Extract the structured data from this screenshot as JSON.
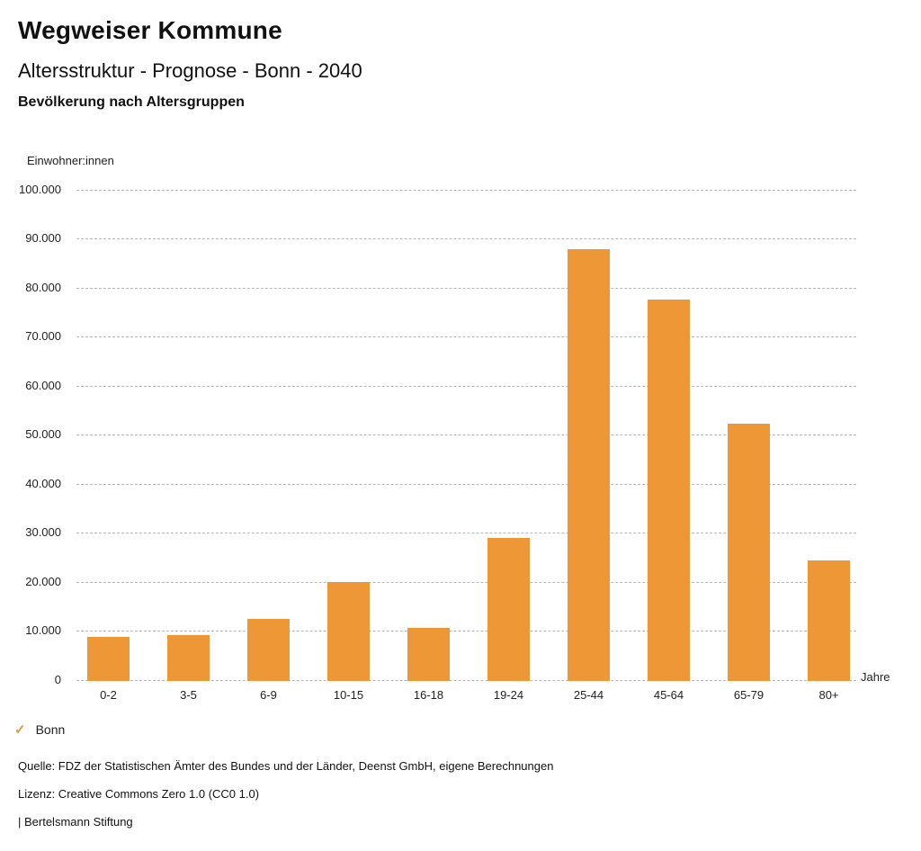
{
  "header": {
    "title": "Wegweiser Kommune",
    "subtitle": "Altersstruktur - Prognose - Bonn - 2040",
    "chart_heading": "Bevölkerung nach Altersgruppen"
  },
  "legend": {
    "check_icon": "✓",
    "label": "Bonn"
  },
  "footer": {
    "source": "Quelle: FDZ der Statistischen Ämter des Bundes und der Länder, Deenst GmbH, eigene Berechnungen",
    "license": "Lizenz: Creative Commons Zero 1.0 (CC0 1.0)",
    "publisher": "| Bertelsmann Stiftung"
  },
  "colors": {
    "bar": "#ED9737",
    "accent": "#ED9737",
    "gridline": "#b5b5b5",
    "text": "#111111"
  },
  "chart_data": {
    "type": "bar",
    "title": "Bevölkerung nach Altersgruppen",
    "categories": [
      "0-2",
      "3-5",
      "6-9",
      "10-15",
      "16-18",
      "19-24",
      "25-44",
      "45-64",
      "65-79",
      "80+"
    ],
    "series": [
      {
        "name": "Bonn",
        "values": [
          8800,
          9000,
          12400,
          19900,
          10500,
          28900,
          87900,
          77600,
          52300,
          24300
        ]
      }
    ],
    "xlabel": "Jahre",
    "ylabel": "Einwohner:innen",
    "ylim": [
      0,
      100000
    ],
    "ytick_step": 10000,
    "ytick_labels": [
      "0",
      "10.000",
      "20.000",
      "30.000",
      "40.000",
      "50.000",
      "60.000",
      "70.000",
      "80.000",
      "90.000",
      "100.000"
    ],
    "grid": "horizontal-dashed",
    "legend_position": "bottom-left"
  }
}
